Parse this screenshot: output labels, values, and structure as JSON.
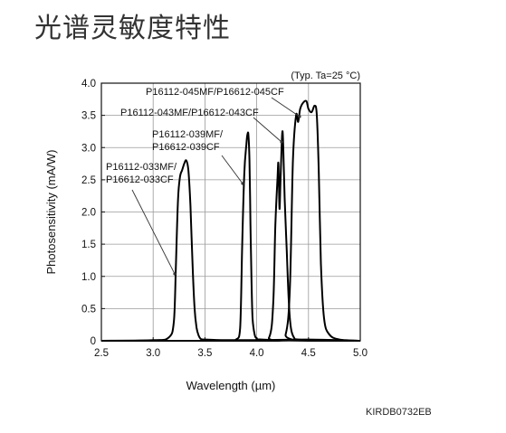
{
  "page": {
    "title": "光谱灵敏度特性",
    "figure_code": "KIRDB0732EB"
  },
  "chart_data": {
    "type": "line",
    "title": "",
    "condition_note": "(Typ. Ta=25 °C)",
    "xlabel": "Wavelength (µm)",
    "ylabel": "Photosensitivity (mA/W)",
    "xlim": [
      2.5,
      5.0
    ],
    "ylim": [
      0,
      4.0
    ],
    "x_ticks": [
      2.5,
      3.0,
      3.5,
      4.0,
      4.5,
      5.0
    ],
    "x_tick_labels": [
      "2.5",
      "3.0",
      "3.5",
      "4.0",
      "4.5",
      "5.0"
    ],
    "y_ticks": [
      0,
      0.5,
      1.0,
      1.5,
      2.0,
      2.5,
      3.0,
      3.5,
      4.0
    ],
    "y_tick_labels": [
      "0",
      "0.5",
      "1.0",
      "1.5",
      "2.0",
      "2.5",
      "3.0",
      "3.5",
      "4.0"
    ],
    "grid": true,
    "series": [
      {
        "name": "P16112-033MF/ P16612-033CF",
        "label_lines": [
          "P16112-033MF/",
          "P16612-033CF"
        ],
        "x": [
          2.5,
          3.0,
          3.15,
          3.2,
          3.22,
          3.24,
          3.26,
          3.28,
          3.3,
          3.32,
          3.34,
          3.36,
          3.38,
          3.4,
          3.42,
          3.44,
          3.46,
          3.5,
          3.7,
          4.0,
          4.5,
          5.0
        ],
        "values": [
          0,
          0.01,
          0.05,
          0.3,
          1.2,
          2.2,
          2.55,
          2.65,
          2.75,
          2.8,
          2.65,
          2.1,
          1.2,
          0.5,
          0.2,
          0.08,
          0.03,
          0.02,
          0.01,
          0.01,
          0.02,
          0
        ]
      },
      {
        "name": "P16112-039MF/ P16612-039CF",
        "label_lines": [
          "P16112-039MF/",
          "P16612-039CF"
        ],
        "x": [
          2.5,
          3.7,
          3.8,
          3.84,
          3.86,
          3.88,
          3.9,
          3.91,
          3.92,
          3.93,
          3.94,
          3.95,
          3.96,
          3.98,
          4.0,
          4.05,
          4.5,
          5.0
        ],
        "values": [
          0,
          0,
          0.02,
          0.2,
          1.5,
          2.6,
          3.05,
          3.2,
          3.2,
          2.8,
          1.8,
          0.9,
          0.35,
          0.1,
          0.04,
          0.02,
          0,
          0
        ]
      },
      {
        "name": "P16112-043MF/ P16612-043CF",
        "label_lines": [
          "P16112-043MF/P16612-043CF"
        ],
        "x": [
          2.5,
          4.0,
          4.12,
          4.16,
          4.18,
          4.2,
          4.21,
          4.22,
          4.23,
          4.24,
          4.25,
          4.26,
          4.27,
          4.29,
          4.31,
          4.33,
          4.36,
          4.4,
          4.6,
          5.0
        ],
        "values": [
          0,
          0,
          0.05,
          0.6,
          1.8,
          2.5,
          2.75,
          2.05,
          2.5,
          3.0,
          3.25,
          2.8,
          2.2,
          1.4,
          0.6,
          0.2,
          0.05,
          0.02,
          0,
          0
        ]
      },
      {
        "name": "P16112-045MF/ P16612-045CF",
        "label_lines": [
          "P16112-045MF/P16612-045CF"
        ],
        "x": [
          2.5,
          4.2,
          4.28,
          4.32,
          4.35,
          4.38,
          4.4,
          4.42,
          4.45,
          4.48,
          4.5,
          4.53,
          4.56,
          4.58,
          4.6,
          4.62,
          4.65,
          4.7,
          4.8,
          5.0
        ],
        "values": [
          0,
          0,
          0.1,
          0.8,
          2.8,
          3.5,
          3.4,
          3.6,
          3.7,
          3.72,
          3.6,
          3.55,
          3.65,
          3.5,
          2.6,
          1.2,
          0.35,
          0.1,
          0.02,
          0
        ]
      }
    ]
  }
}
